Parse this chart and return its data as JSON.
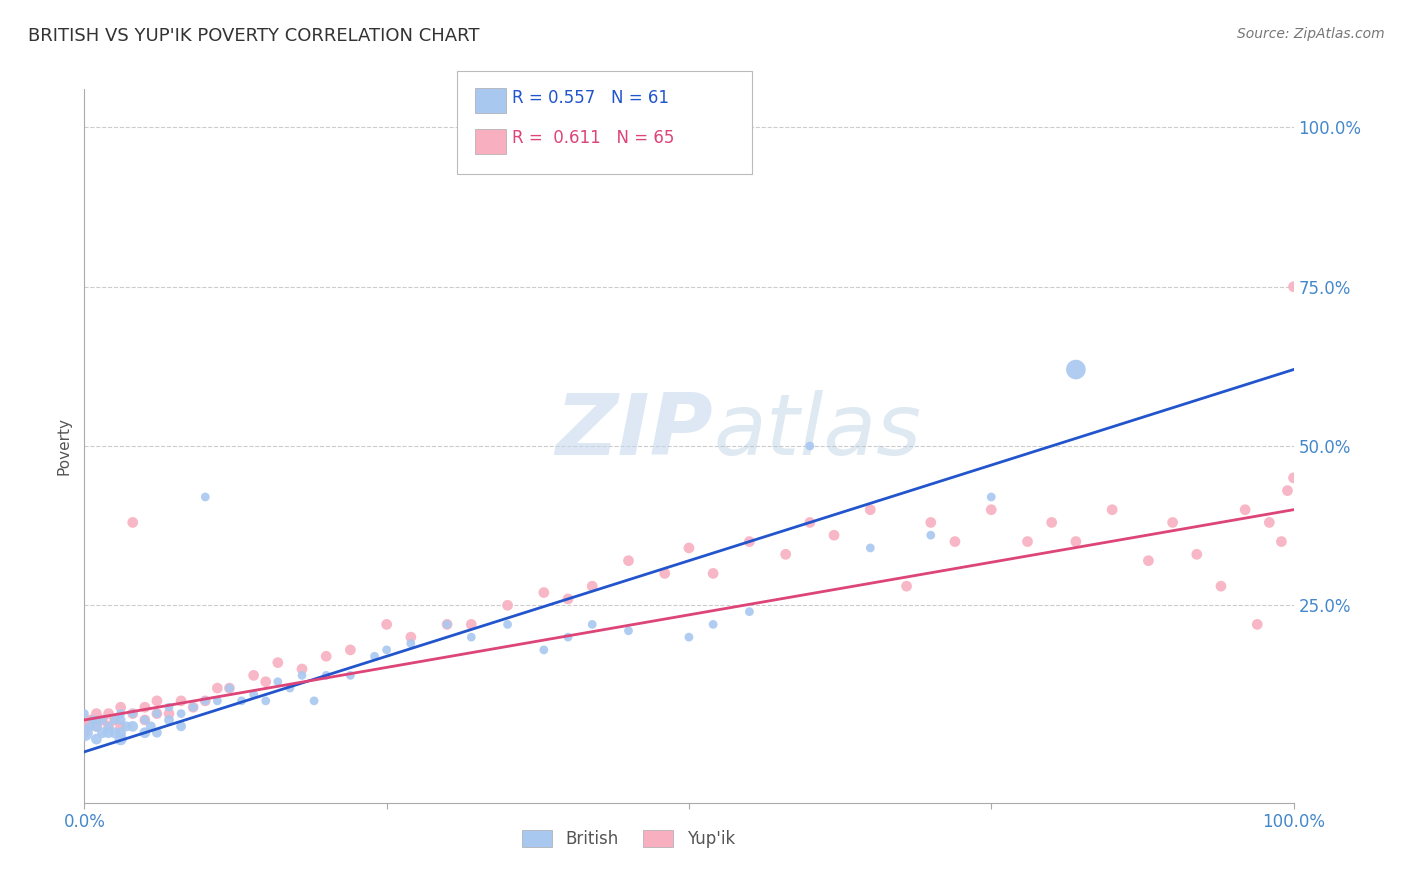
{
  "title": "BRITISH VS YUP'IK POVERTY CORRELATION CHART",
  "source_text": "Source: ZipAtlas.com",
  "ylabel": "Poverty",
  "xlim": [
    0,
    1
  ],
  "ylim": [
    -0.06,
    1.06
  ],
  "ytick_labels": [
    "25.0%",
    "50.0%",
    "75.0%",
    "100.0%"
  ],
  "ytick_values": [
    0.25,
    0.5,
    0.75,
    1.0
  ],
  "british_color": "#A8C8F0",
  "yupik_color": "#F8B0C0",
  "british_line_color": "#2255CC",
  "yupik_line_color": "#DD4477",
  "british_R": 0.557,
  "british_N": 61,
  "yupik_R": 0.611,
  "yupik_N": 65,
  "legend_label_british": "British",
  "legend_label_yupik": "Yup'ik",
  "watermark_zip": "ZIP",
  "watermark_atlas": "atlas",
  "background_color": "#ffffff",
  "grid_color": "#cccccc",
  "title_color": "#333333",
  "axis_label_color": "#555555",
  "tick_label_color": "#4488cc",
  "british_line_x": [
    0.0,
    1.0
  ],
  "british_line_y": [
    0.02,
    0.62
  ],
  "yupik_line_x": [
    0.0,
    1.0
  ],
  "yupik_line_y": [
    0.07,
    0.4
  ],
  "british_x": [
    0.0,
    0.0,
    0.005,
    0.007,
    0.01,
    0.01,
    0.01,
    0.015,
    0.015,
    0.02,
    0.02,
    0.025,
    0.025,
    0.03,
    0.03,
    0.03,
    0.03,
    0.035,
    0.04,
    0.04,
    0.05,
    0.05,
    0.055,
    0.06,
    0.06,
    0.07,
    0.07,
    0.08,
    0.08,
    0.09,
    0.1,
    0.1,
    0.11,
    0.12,
    0.13,
    0.14,
    0.15,
    0.16,
    0.17,
    0.18,
    0.19,
    0.2,
    0.22,
    0.24,
    0.25,
    0.27,
    0.3,
    0.32,
    0.35,
    0.38,
    0.4,
    0.42,
    0.45,
    0.5,
    0.52,
    0.55,
    0.6,
    0.65,
    0.7,
    0.75,
    0.82
  ],
  "british_y": [
    0.05,
    0.08,
    0.06,
    0.07,
    0.04,
    0.06,
    0.07,
    0.05,
    0.07,
    0.05,
    0.06,
    0.05,
    0.07,
    0.04,
    0.05,
    0.07,
    0.08,
    0.06,
    0.06,
    0.08,
    0.05,
    0.07,
    0.06,
    0.05,
    0.08,
    0.07,
    0.09,
    0.06,
    0.08,
    0.09,
    0.1,
    0.42,
    0.1,
    0.12,
    0.1,
    0.11,
    0.1,
    0.13,
    0.12,
    0.14,
    0.1,
    0.14,
    0.14,
    0.17,
    0.18,
    0.19,
    0.22,
    0.2,
    0.22,
    0.18,
    0.2,
    0.22,
    0.21,
    0.2,
    0.22,
    0.24,
    0.5,
    0.34,
    0.36,
    0.42,
    0.62
  ],
  "british_sizes": [
    150,
    40,
    40,
    40,
    60,
    60,
    40,
    60,
    40,
    60,
    40,
    60,
    40,
    80,
    60,
    50,
    40,
    50,
    60,
    40,
    60,
    40,
    50,
    50,
    40,
    50,
    40,
    50,
    40,
    40,
    40,
    40,
    40,
    40,
    40,
    40,
    40,
    40,
    40,
    40,
    40,
    40,
    40,
    40,
    40,
    40,
    40,
    40,
    40,
    40,
    40,
    40,
    40,
    40,
    40,
    40,
    40,
    40,
    40,
    40,
    200
  ],
  "yupik_x": [
    0.0,
    0.0,
    0.005,
    0.01,
    0.01,
    0.015,
    0.02,
    0.02,
    0.025,
    0.03,
    0.03,
    0.04,
    0.04,
    0.05,
    0.05,
    0.06,
    0.06,
    0.07,
    0.08,
    0.09,
    0.1,
    0.11,
    0.12,
    0.14,
    0.15,
    0.16,
    0.18,
    0.2,
    0.22,
    0.25,
    0.27,
    0.3,
    0.32,
    0.35,
    0.38,
    0.4,
    0.42,
    0.45,
    0.48,
    0.5,
    0.52,
    0.55,
    0.58,
    0.6,
    0.62,
    0.65,
    0.68,
    0.7,
    0.72,
    0.75,
    0.78,
    0.8,
    0.82,
    0.85,
    0.88,
    0.9,
    0.92,
    0.94,
    0.96,
    0.97,
    0.98,
    0.99,
    0.995,
    1.0,
    1.0
  ],
  "yupik_y": [
    0.05,
    0.06,
    0.07,
    0.06,
    0.08,
    0.07,
    0.06,
    0.08,
    0.07,
    0.06,
    0.09,
    0.08,
    0.38,
    0.07,
    0.09,
    0.08,
    0.1,
    0.08,
    0.1,
    0.09,
    0.1,
    0.12,
    0.12,
    0.14,
    0.13,
    0.16,
    0.15,
    0.17,
    0.18,
    0.22,
    0.2,
    0.22,
    0.22,
    0.25,
    0.27,
    0.26,
    0.28,
    0.32,
    0.3,
    0.34,
    0.3,
    0.35,
    0.33,
    0.38,
    0.36,
    0.4,
    0.28,
    0.38,
    0.35,
    0.4,
    0.35,
    0.38,
    0.35,
    0.4,
    0.32,
    0.38,
    0.33,
    0.28,
    0.4,
    0.22,
    0.38,
    0.35,
    0.43,
    0.45,
    0.75
  ],
  "yupik_sizes": [
    60,
    60,
    60,
    60,
    60,
    60,
    60,
    60,
    60,
    60,
    60,
    60,
    60,
    60,
    60,
    60,
    60,
    60,
    60,
    60,
    60,
    60,
    60,
    60,
    60,
    60,
    60,
    60,
    60,
    60,
    60,
    60,
    60,
    60,
    60,
    60,
    60,
    60,
    60,
    60,
    60,
    60,
    60,
    60,
    60,
    60,
    60,
    60,
    60,
    60,
    60,
    60,
    60,
    60,
    60,
    60,
    60,
    60,
    60,
    60,
    60,
    60,
    60,
    60,
    60
  ]
}
